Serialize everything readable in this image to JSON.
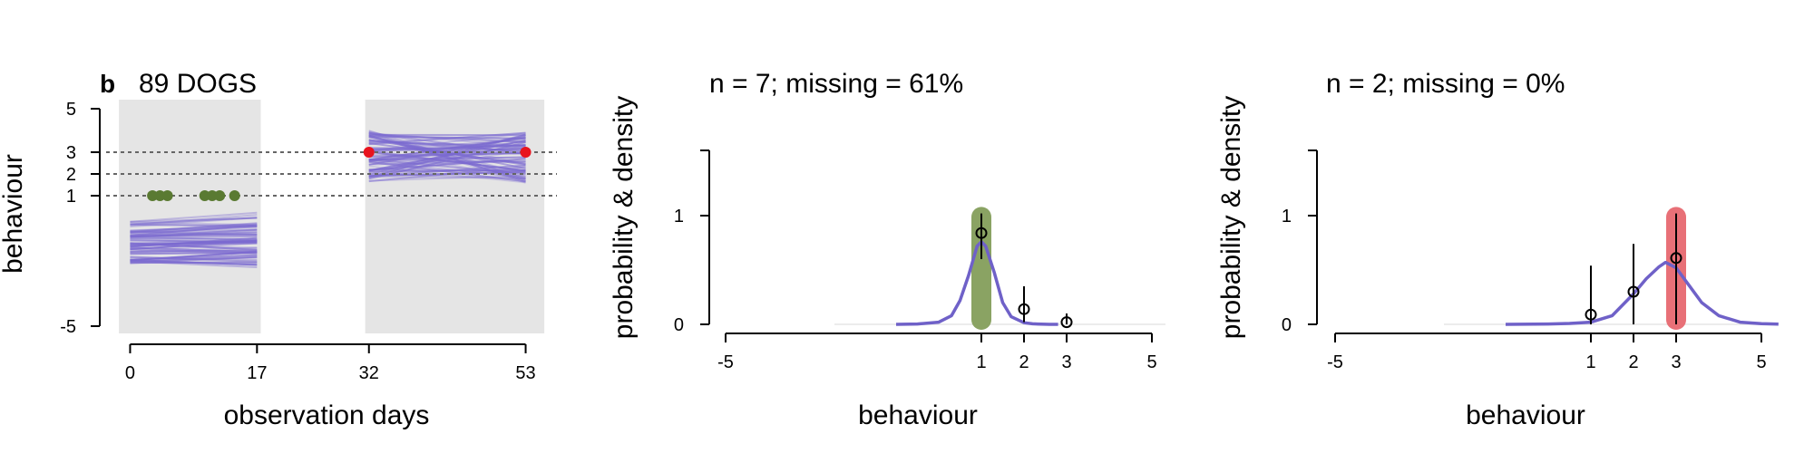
{
  "figure": {
    "panel_letter": "b",
    "panel_title": "89 DOGS"
  },
  "chart_data": [
    {
      "type": "line",
      "title": "89 DOGS",
      "xlabel": "observation days",
      "ylabel": "behaviour",
      "xticks": [
        0,
        17,
        32,
        53
      ],
      "yticks": [
        -5,
        1,
        2,
        3,
        5
      ],
      "xlim": [
        -2,
        55
      ],
      "ylim": [
        -5,
        5
      ],
      "reference_lines_y": [
        1,
        2,
        3
      ],
      "shaded_periods": [
        [
          -1.5,
          17.5
        ],
        [
          31.5,
          55.5
        ]
      ],
      "period1_points": {
        "color": "#5a7a32",
        "x": [
          3,
          4,
          5,
          10,
          11,
          12,
          14
        ],
        "y": [
          1,
          1,
          1,
          1,
          1,
          1,
          1
        ]
      },
      "period2_points": {
        "color": "#e8141e",
        "x": [
          32,
          53
        ],
        "y": [
          3,
          3
        ]
      },
      "model_lines_color": "#7b6ad0"
    },
    {
      "type": "line",
      "title": "n = 7; missing = 61%",
      "xlabel": "behaviour",
      "ylabel": "probability & density",
      "xticks": [
        -5,
        1,
        2,
        3,
        5
      ],
      "yticks": [
        0,
        1
      ],
      "xlim": [
        -5,
        5
      ],
      "ylim": [
        0,
        1.6
      ],
      "highlight": {
        "x": 1,
        "color": "#8aa363"
      },
      "density": {
        "x": [
          -1,
          -0.5,
          0,
          0.3,
          0.5,
          0.7,
          0.9,
          1.0,
          1.1,
          1.3,
          1.5,
          1.7,
          2.0,
          2.2,
          2.4,
          2.6,
          2.8
        ],
        "y": [
          0,
          0.003,
          0.02,
          0.08,
          0.22,
          0.45,
          0.72,
          0.76,
          0.72,
          0.48,
          0.2,
          0.07,
          0.015,
          0.005,
          0.002,
          0,
          0
        ]
      },
      "points": {
        "x": [
          1,
          2,
          3
        ],
        "y": [
          0.84,
          0.14,
          0.02
        ],
        "lower": [
          0.6,
          0.02,
          0.0
        ],
        "upper": [
          1.02,
          0.35,
          0.1
        ]
      }
    },
    {
      "type": "line",
      "title": "n = 2; missing = 0%",
      "xlabel": "behaviour",
      "ylabel": "probability & density",
      "xticks": [
        -5,
        1,
        2,
        3,
        5
      ],
      "yticks": [
        0,
        1
      ],
      "xlim": [
        -5,
        5
      ],
      "ylim": [
        0,
        1.6
      ],
      "highlight": {
        "x": 3,
        "color": "#e87077"
      },
      "density": {
        "x": [
          -1,
          0,
          0.5,
          1,
          1.5,
          2,
          2.3,
          2.6,
          2.75,
          3,
          3.3,
          3.6,
          4,
          4.5,
          5,
          5.4
        ],
        "y": [
          0,
          0.003,
          0.008,
          0.02,
          0.08,
          0.28,
          0.42,
          0.53,
          0.57,
          0.52,
          0.36,
          0.2,
          0.08,
          0.02,
          0.006,
          0.002
        ]
      },
      "points": {
        "x": [
          1,
          2,
          3
        ],
        "y": [
          0.09,
          0.3,
          0.61
        ],
        "lower": [
          0.0,
          0.0,
          0.0
        ],
        "upper": [
          0.54,
          0.74,
          1.02
        ]
      }
    }
  ]
}
